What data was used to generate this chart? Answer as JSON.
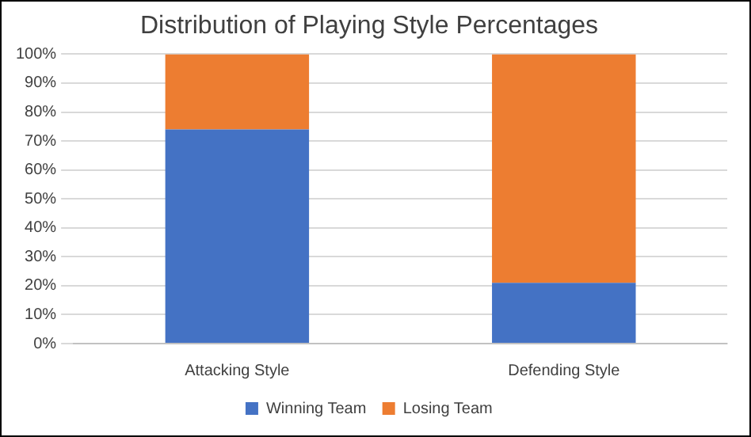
{
  "chart_data": {
    "type": "bar",
    "title": "Distribution of Playing Style Percentages",
    "categories": [
      "Attacking Style",
      "Defending Style"
    ],
    "series": [
      {
        "name": "Winning Team",
        "color": "#4472c4",
        "values": [
          74,
          21
        ]
      },
      {
        "name": "Losing Team",
        "color": "#ed7d31",
        "values": [
          26,
          79
        ]
      }
    ],
    "stacked": true,
    "ylim": [
      0,
      100
    ],
    "yticks": [
      {
        "value": 0,
        "label": "0%"
      },
      {
        "value": 10,
        "label": "10%"
      },
      {
        "value": 20,
        "label": "20%"
      },
      {
        "value": 30,
        "label": "30%"
      },
      {
        "value": 40,
        "label": "40%"
      },
      {
        "value": 50,
        "label": "50%"
      },
      {
        "value": 60,
        "label": "60%"
      },
      {
        "value": 70,
        "label": "70%"
      },
      {
        "value": 80,
        "label": "80%"
      },
      {
        "value": 90,
        "label": "90%"
      },
      {
        "value": 100,
        "label": "100%"
      }
    ],
    "grid": "y",
    "legend": "bottom"
  }
}
